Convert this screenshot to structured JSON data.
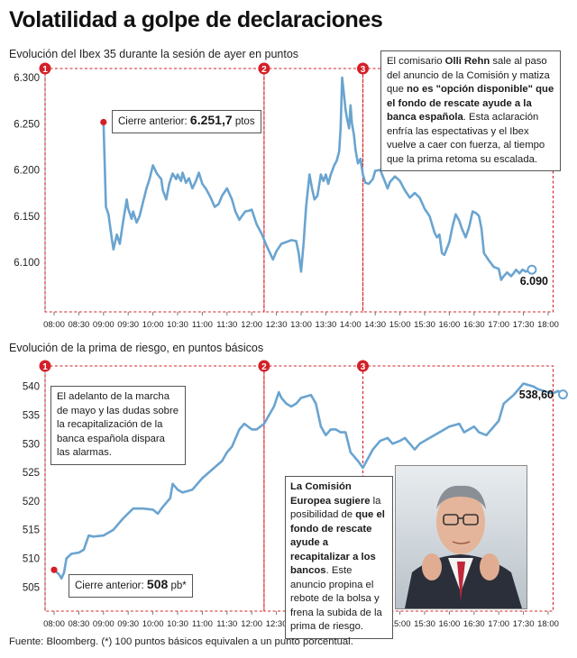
{
  "title": "Volatilidad a golpe de declaraciones",
  "source": "Fuente: Bloomberg. (*) 100 puntos básicos equivalen a un punto porcentual.",
  "colors": {
    "line": "#6aa4d0",
    "marker": "#d42027",
    "grid": "#d42027",
    "end_marker": "#6aa4d0"
  },
  "time_ticks": [
    "08:00",
    "08:30",
    "09:00",
    "09:30",
    "10:00",
    "10:30",
    "11:00",
    "11:30",
    "12:00",
    "12:30",
    "13:00",
    "13:30",
    "14:00",
    "14:30",
    "15:00",
    "15:30",
    "16:00",
    "16:30",
    "17:00",
    "17:30",
    "18:00"
  ],
  "event_labels": [
    "1",
    "2",
    "3"
  ],
  "ibex": {
    "subtitle": "Evolución del Ibex 35 durante la sesión de ayer en puntos",
    "prev_label": "Cierre anterior:",
    "prev_value": "6.251,7",
    "prev_unit": "ptos",
    "end_label": "6.090",
    "note_parts": [
      {
        "t": "El comisario ",
        "b": false
      },
      {
        "t": "Olli Rehn",
        "b": true
      },
      {
        "t": " sale al paso del anuncio de la Comisión y matiza que ",
        "b": false
      },
      {
        "t": "no es \"opción disponible\" que el fondo de rescate ayude a la banca española",
        "b": true
      },
      {
        "t": ". Esta aclaración enfría las espectativas y el Ibex vuelve a caer con fuerza, al tiempo que la prima retoma su escalada.",
        "b": false
      }
    ]
  },
  "prima": {
    "subtitle": "Evolución de la prima de riesgo, en puntos básicos",
    "prev_label": "Cierre anterior:",
    "prev_value": "508",
    "prev_unit": "pb*",
    "end_label": "538,60",
    "note1": "El adelanto de la marcha de mayo y las dudas sobre la recapitalización de la banca española dispara las alarmas.",
    "note2_parts": [
      {
        "t": "La Comisión Europea sugiere",
        "b": true
      },
      {
        "t": " la posibilidad de ",
        "b": false
      },
      {
        "t": "que el fondo de rescate ayude a recapitalizar a los bancos",
        "b": true
      },
      {
        "t": ". Este anuncio propina el rebote de la bolsa y frena la subida de la prima de riesgo.",
        "b": false
      }
    ]
  },
  "chart_data": [
    {
      "type": "line",
      "title": "Evolución del Ibex 35 durante la sesión de ayer en puntos",
      "xlabel": "",
      "ylabel": "",
      "x_unit": "hours",
      "ylim": [
        6060,
        6300
      ],
      "yticks": [
        6100,
        6150,
        6200,
        6250,
        6300
      ],
      "ytick_labels": [
        "6.100",
        "6.150",
        "6.200",
        "6.250",
        "6.300"
      ],
      "events": [
        8.0,
        12.25,
        14.25
      ],
      "previous_close": 6251.7,
      "grid": false,
      "series": [
        {
          "points": [
            [
              9.0,
              6251.7
            ],
            [
              9.05,
              6160
            ],
            [
              9.1,
              6152
            ],
            [
              9.17,
              6125
            ],
            [
              9.2,
              6114
            ],
            [
              9.27,
              6130
            ],
            [
              9.33,
              6120
            ],
            [
              9.4,
              6145
            ],
            [
              9.47,
              6168
            ],
            [
              9.5,
              6158
            ],
            [
              9.57,
              6147
            ],
            [
              9.6,
              6155
            ],
            [
              9.67,
              6143
            ],
            [
              9.73,
              6150
            ],
            [
              9.8,
              6165
            ],
            [
              9.87,
              6180
            ],
            [
              9.93,
              6190
            ],
            [
              10.0,
              6205
            ],
            [
              10.08,
              6196
            ],
            [
              10.17,
              6190
            ],
            [
              10.2,
              6178
            ],
            [
              10.27,
              6168
            ],
            [
              10.33,
              6185
            ],
            [
              10.4,
              6196
            ],
            [
              10.47,
              6190
            ],
            [
              10.5,
              6195
            ],
            [
              10.57,
              6188
            ],
            [
              10.6,
              6197
            ],
            [
              10.67,
              6186
            ],
            [
              10.73,
              6191
            ],
            [
              10.8,
              6180
            ],
            [
              10.87,
              6188
            ],
            [
              10.93,
              6197
            ],
            [
              11.0,
              6185
            ],
            [
              11.08,
              6179
            ],
            [
              11.17,
              6170
            ],
            [
              11.25,
              6160
            ],
            [
              11.33,
              6163
            ],
            [
              11.4,
              6172
            ],
            [
              11.5,
              6180
            ],
            [
              11.6,
              6168
            ],
            [
              11.67,
              6155
            ],
            [
              11.75,
              6146
            ],
            [
              11.8,
              6150
            ],
            [
              11.87,
              6155
            ],
            [
              11.95,
              6156
            ],
            [
              12.0,
              6157
            ],
            [
              12.1,
              6141
            ],
            [
              12.2,
              6131
            ],
            [
              12.3,
              6118
            ],
            [
              12.37,
              6110
            ],
            [
              12.43,
              6103
            ],
            [
              12.5,
              6112
            ],
            [
              12.6,
              6120
            ],
            [
              12.7,
              6122
            ],
            [
              12.8,
              6124
            ],
            [
              12.9,
              6123
            ],
            [
              12.95,
              6110
            ],
            [
              13.0,
              6090
            ],
            [
              13.05,
              6120
            ],
            [
              13.1,
              6160
            ],
            [
              13.17,
              6195
            ],
            [
              13.22,
              6180
            ],
            [
              13.27,
              6168
            ],
            [
              13.33,
              6172
            ],
            [
              13.4,
              6195
            ],
            [
              13.45,
              6188
            ],
            [
              13.5,
              6195
            ],
            [
              13.55,
              6185
            ],
            [
              13.6,
              6195
            ],
            [
              13.67,
              6205
            ],
            [
              13.72,
              6210
            ],
            [
              13.77,
              6220
            ],
            [
              13.8,
              6245
            ],
            [
              13.83,
              6300
            ],
            [
              13.87,
              6280
            ],
            [
              13.9,
              6265
            ],
            [
              13.93,
              6255
            ],
            [
              13.97,
              6245
            ],
            [
              14.0,
              6270
            ],
            [
              14.03,
              6250
            ],
            [
              14.07,
              6238
            ],
            [
              14.1,
              6222
            ],
            [
              14.15,
              6207
            ],
            [
              14.2,
              6212
            ],
            [
              14.25,
              6195
            ],
            [
              14.3,
              6186
            ],
            [
              14.37,
              6185
            ],
            [
              14.45,
              6190
            ],
            [
              14.5,
              6199
            ],
            [
              14.6,
              6200
            ],
            [
              14.67,
              6191
            ],
            [
              14.75,
              6180
            ],
            [
              14.8,
              6187
            ],
            [
              14.9,
              6193
            ],
            [
              15.0,
              6188
            ],
            [
              15.1,
              6178
            ],
            [
              15.2,
              6170
            ],
            [
              15.3,
              6175
            ],
            [
              15.4,
              6170
            ],
            [
              15.5,
              6158
            ],
            [
              15.6,
              6150
            ],
            [
              15.7,
              6132
            ],
            [
              15.75,
              6127
            ],
            [
              15.8,
              6130
            ],
            [
              15.85,
              6110
            ],
            [
              15.9,
              6108
            ],
            [
              16.0,
              6122
            ],
            [
              16.07,
              6140
            ],
            [
              16.13,
              6152
            ],
            [
              16.2,
              6145
            ],
            [
              16.25,
              6137
            ],
            [
              16.33,
              6127
            ],
            [
              16.4,
              6138
            ],
            [
              16.47,
              6155
            ],
            [
              16.55,
              6153
            ],
            [
              16.6,
              6150
            ],
            [
              16.65,
              6137
            ],
            [
              16.7,
              6110
            ],
            [
              16.8,
              6102
            ],
            [
              16.9,
              6095
            ],
            [
              17.0,
              6093
            ],
            [
              17.05,
              6081
            ],
            [
              17.1,
              6085
            ],
            [
              17.17,
              6089
            ],
            [
              17.25,
              6085
            ],
            [
              17.3,
              6088
            ],
            [
              17.35,
              6092
            ],
            [
              17.42,
              6088
            ],
            [
              17.48,
              6092
            ],
            [
              17.55,
              6090
            ],
            [
              17.6,
              6091
            ],
            [
              17.67,
              6092
            ]
          ]
        }
      ]
    },
    {
      "type": "line",
      "title": "Evolución de la prima de riesgo, en puntos básicos",
      "xlabel": "",
      "ylabel": "",
      "x_unit": "hours",
      "ylim": [
        503,
        542
      ],
      "yticks": [
        505,
        510,
        515,
        520,
        525,
        530,
        535,
        540
      ],
      "ytick_labels": [
        "505",
        "510",
        "515",
        "520",
        "525",
        "530",
        "535",
        "540"
      ],
      "events": [
        8.0,
        12.25,
        14.25
      ],
      "previous_close": 508,
      "grid": false,
      "series": [
        {
          "points": [
            [
              8.0,
              508
            ],
            [
              8.1,
              507.2
            ],
            [
              8.15,
              506.5
            ],
            [
              8.2,
              507.5
            ],
            [
              8.25,
              510
            ],
            [
              8.35,
              510.8
            ],
            [
              8.5,
              511
            ],
            [
              8.6,
              511.5
            ],
            [
              8.7,
              514
            ],
            [
              8.8,
              513.8
            ],
            [
              9.0,
              514
            ],
            [
              9.2,
              515
            ],
            [
              9.4,
              517
            ],
            [
              9.6,
              518.7
            ],
            [
              9.8,
              518.7
            ],
            [
              10.0,
              518.5
            ],
            [
              10.1,
              517.8
            ],
            [
              10.2,
              519
            ],
            [
              10.35,
              520.5
            ],
            [
              10.4,
              523
            ],
            [
              10.5,
              522
            ],
            [
              10.6,
              521.5
            ],
            [
              10.8,
              522
            ],
            [
              11.0,
              524
            ],
            [
              11.2,
              525.5
            ],
            [
              11.4,
              527
            ],
            [
              11.5,
              528.5
            ],
            [
              11.6,
              529.5
            ],
            [
              11.75,
              532.5
            ],
            [
              11.85,
              533.5
            ],
            [
              12.0,
              532.5
            ],
            [
              12.1,
              532.5
            ],
            [
              12.25,
              533.5
            ],
            [
              12.35,
              535
            ],
            [
              12.45,
              536.5
            ],
            [
              12.55,
              539
            ],
            [
              12.6,
              538
            ],
            [
              12.7,
              537
            ],
            [
              12.8,
              536.5
            ],
            [
              12.9,
              537
            ],
            [
              13.0,
              538
            ],
            [
              13.2,
              538.5
            ],
            [
              13.3,
              537
            ],
            [
              13.4,
              533
            ],
            [
              13.5,
              531.5
            ],
            [
              13.6,
              532.5
            ],
            [
              13.7,
              532.5
            ],
            [
              13.8,
              532
            ],
            [
              13.9,
              532
            ],
            [
              14.0,
              528.5
            ],
            [
              14.15,
              527
            ],
            [
              14.25,
              525.8
            ],
            [
              14.45,
              529
            ],
            [
              14.6,
              530.5
            ],
            [
              14.75,
              531
            ],
            [
              14.85,
              530
            ],
            [
              15.0,
              530.5
            ],
            [
              15.1,
              531
            ],
            [
              15.2,
              530
            ],
            [
              15.3,
              529
            ],
            [
              15.4,
              530
            ],
            [
              15.6,
              531
            ],
            [
              15.8,
              532
            ],
            [
              16.0,
              533
            ],
            [
              16.2,
              533.5
            ],
            [
              16.3,
              532
            ],
            [
              16.5,
              533
            ],
            [
              16.6,
              532
            ],
            [
              16.75,
              531.5
            ],
            [
              16.85,
              532.5
            ],
            [
              17.0,
              534
            ],
            [
              17.1,
              537
            ],
            [
              17.3,
              538.5
            ],
            [
              17.5,
              540.5
            ],
            [
              17.7,
              540
            ],
            [
              17.8,
              539.5
            ],
            [
              18.0,
              539
            ],
            [
              18.1,
              538.8
            ],
            [
              18.2,
              539.2
            ],
            [
              18.3,
              538.6
            ]
          ]
        }
      ]
    }
  ]
}
